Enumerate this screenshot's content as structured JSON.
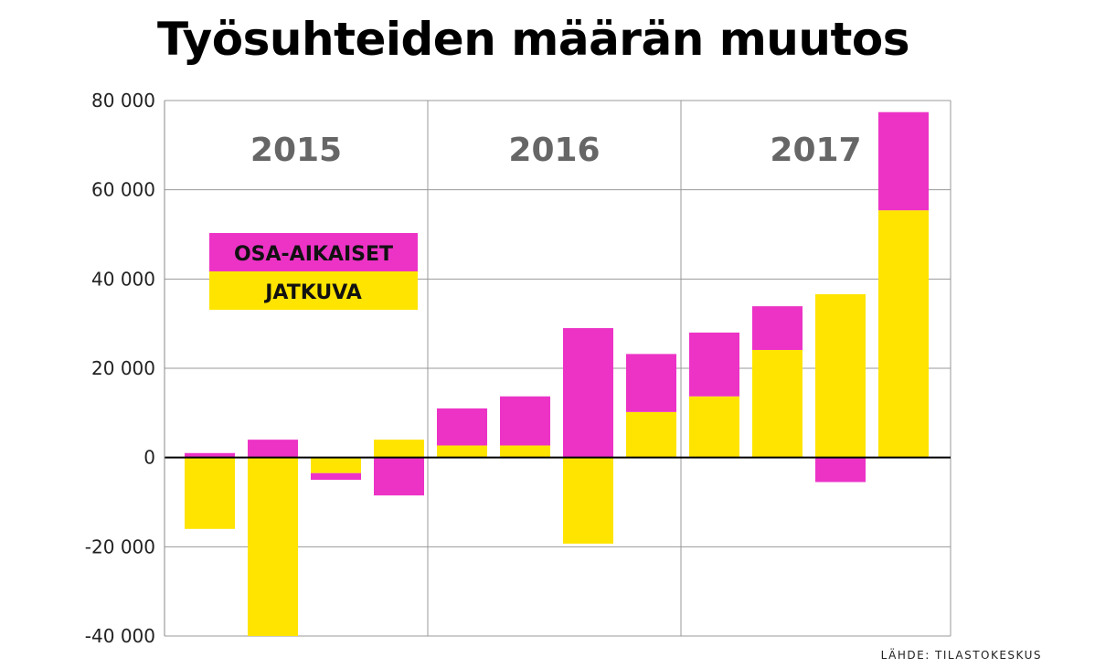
{
  "title": "Työsuhteiden määrän muutos",
  "source": "LÄHDE: TILASTOKESKUS",
  "colors": {
    "osa_aikaiset": "#EC33C6",
    "jatkuva": "#FFE400"
  },
  "chart_data": {
    "type": "bar",
    "stacked": true,
    "title": "Työsuhteiden määrän muutos",
    "ylim": [
      -40000,
      80000
    ],
    "yticks": [
      80000,
      60000,
      40000,
      20000,
      0,
      -20000,
      -40000
    ],
    "ytick_labels": [
      "80 000",
      "60 000",
      "40 000",
      "20 000",
      "0",
      "-20 000",
      "-40 000"
    ],
    "grid": true,
    "legend_position": "top-left",
    "groups": [
      {
        "label": "2015",
        "count": 4
      },
      {
        "label": "2016",
        "count": 4
      },
      {
        "label": "2017",
        "count": 4
      }
    ],
    "series": [
      {
        "name": "JATKUVA",
        "color_key": "jatkuva",
        "values": [
          -16000,
          -40000,
          -3500,
          4000,
          2700,
          2700,
          -19300,
          10200,
          13700,
          24100,
          36600,
          55400
        ]
      },
      {
        "name": "OSA-AIKAISET",
        "color_key": "osa_aikaiset",
        "values": [
          1000,
          4000,
          -1500,
          -8500,
          8300,
          11000,
          29000,
          13000,
          14300,
          9800,
          -5500,
          22000
        ]
      }
    ]
  }
}
